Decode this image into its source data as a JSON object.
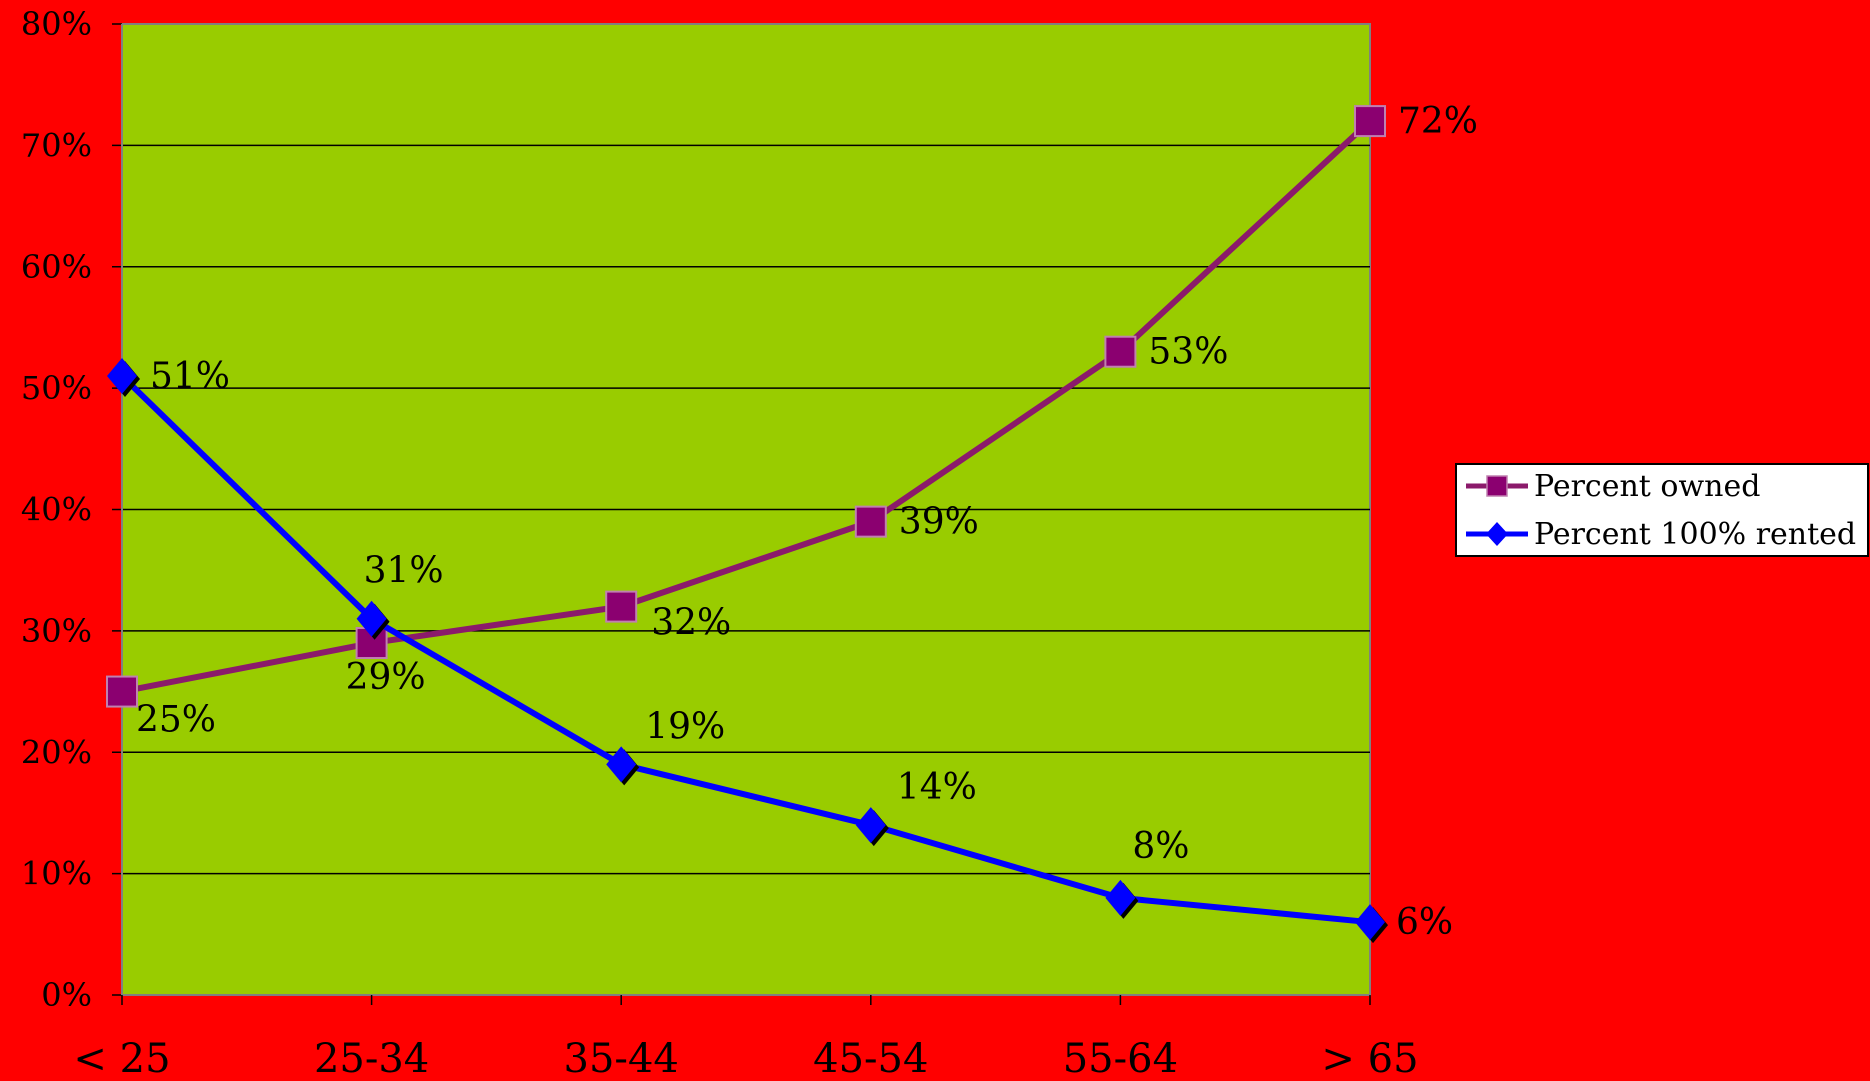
{
  "chart_data": {
    "type": "line",
    "categories": [
      "< 25",
      "25-34",
      "35-44",
      "45-54",
      "55-64",
      "> 65"
    ],
    "series": [
      {
        "name": "Percent owned",
        "values": [
          25,
          29,
          32,
          39,
          53,
          72
        ],
        "labels": [
          "25%",
          "29%",
          "32%",
          "39%",
          "53%",
          "72%"
        ],
        "color": "#8b1a6b",
        "marker": "square"
      },
      {
        "name": "Percent 100% rented",
        "values": [
          51,
          31,
          19,
          14,
          8,
          6
        ],
        "labels": [
          "51%",
          "31%",
          "19%",
          "14%",
          "8%",
          "6%"
        ],
        "color": "#0000ff",
        "marker": "diamond"
      }
    ],
    "ylim": [
      0,
      80
    ],
    "yticks": [
      "0%",
      "10%",
      "20%",
      "30%",
      "40%",
      "50%",
      "60%",
      "70%",
      "80%"
    ],
    "grid": true,
    "legend_position": "right",
    "plot_background": "#99cc00",
    "page_background": "#ff0000",
    "title": "",
    "xlabel": "",
    "ylabel": ""
  }
}
